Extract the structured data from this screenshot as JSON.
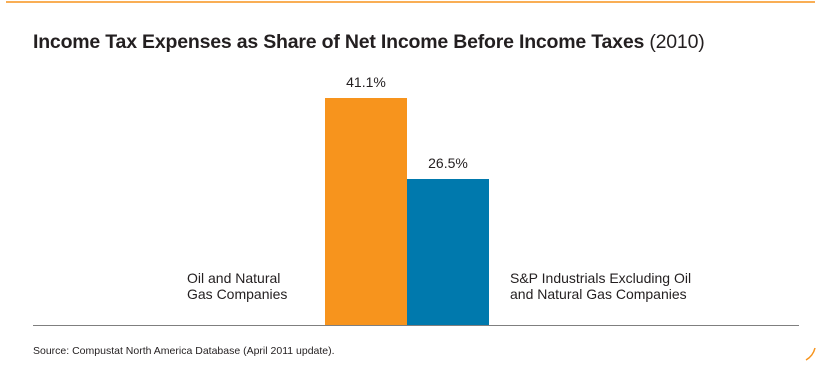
{
  "colors": {
    "frame": "#f7941d",
    "oil_gas": "#f7941d",
    "sp_industrials": "#0079ad",
    "baseline": "#7f7f7f"
  },
  "chart_data": {
    "type": "bar",
    "title": "Income Tax Expenses as Share of Net Income Before Income Taxes",
    "subtitle": "(2010)",
    "categories": [
      "Oil and Natural Gas Companies",
      "S&P Industrials Excluding Oil and Natural Gas Companies"
    ],
    "category_label_lines": [
      [
        "Oil and Natural",
        "Gas Companies"
      ],
      [
        "S&P Industrials Excluding Oil",
        "and Natural Gas Companies"
      ]
    ],
    "values": [
      41.1,
      26.5
    ],
    "value_labels": [
      "41.1%",
      "26.5%"
    ],
    "unit": "%",
    "ylim": [
      0,
      45
    ],
    "grid": false,
    "source": "Source: Compustat North America Database (April 2011 update)."
  }
}
